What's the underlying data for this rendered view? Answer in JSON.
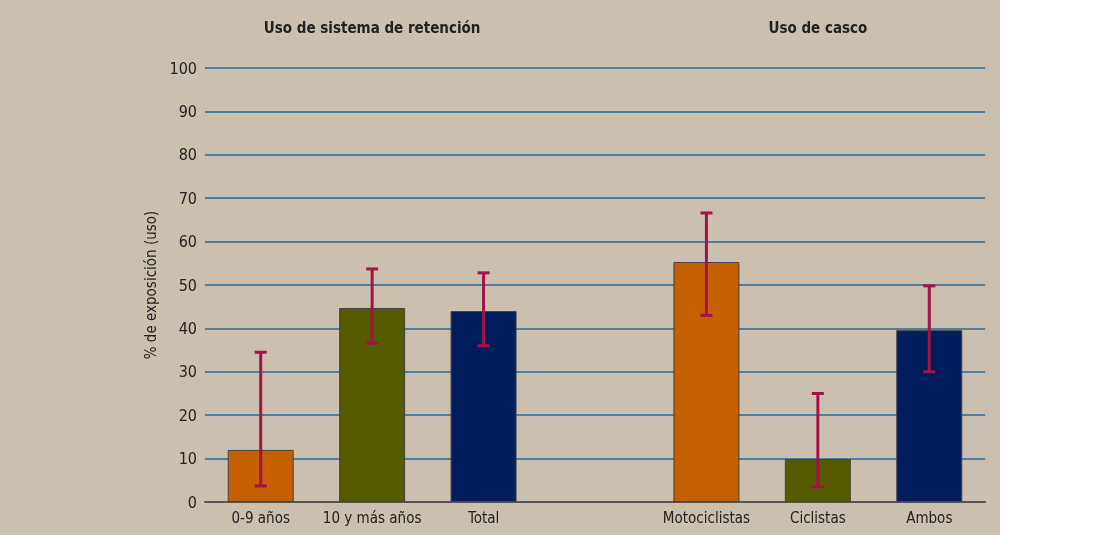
{
  "chart_data": {
    "type": "bar",
    "ylabel": "% de exposición (uso)",
    "annotations": [
      "Uso de sistema de retención",
      "Uso de casco"
    ],
    "categories": [
      "0-9 años",
      "10 y más años",
      "Total",
      null,
      "Motociclistas",
      "Ciclistas",
      "Ambos"
    ],
    "values": [
      12,
      44.7,
      44,
      null,
      55.3,
      9.9,
      39.6
    ],
    "colors": [
      "#c55f00",
      "#565a00",
      "#001e5e",
      null,
      "#c55f00",
      "#565a00",
      "#001e5e"
    ],
    "errors": [
      [
        3.7,
        34.5
      ],
      [
        36.6,
        53.7
      ],
      [
        36,
        52.8
      ],
      null,
      [
        43,
        66.6
      ],
      [
        3.5,
        25
      ],
      [
        30,
        49.8
      ]
    ],
    "ylim": [
      0,
      100
    ],
    "yticks": [
      0,
      10,
      20,
      30,
      40,
      50,
      60,
      70,
      80,
      90,
      100
    ],
    "grid": "y"
  }
}
